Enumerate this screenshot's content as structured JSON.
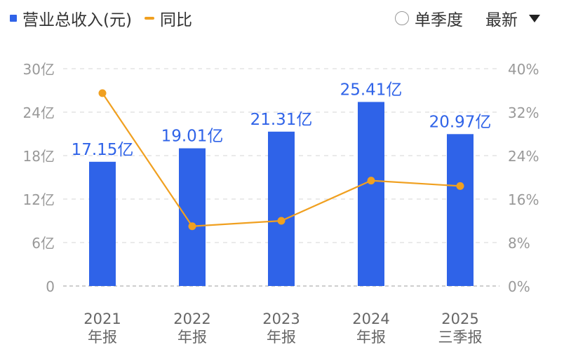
{
  "legend": {
    "revenue_label": "营业总收入(元)",
    "yoy_label": "同比"
  },
  "controls": {
    "period_label": "单季度",
    "sort_label": "最新"
  },
  "colors": {
    "bar": "#2f63e8",
    "line": "#f0a020",
    "value_label": "#2f63e8",
    "axis_text": "#999999",
    "grid": "#e3e3e3"
  },
  "chart_data": {
    "type": "bar",
    "categories": [
      [
        "2021",
        "年报"
      ],
      [
        "2022",
        "年报"
      ],
      [
        "2023",
        "年报"
      ],
      [
        "2024",
        "年报"
      ],
      [
        "2025",
        "三季报"
      ]
    ],
    "series": [
      {
        "name": "营业总收入(元)",
        "type": "bar",
        "axis": "left",
        "values": [
          17.15,
          19.01,
          21.31,
          25.41,
          20.97
        ],
        "labels": [
          "17.15亿",
          "19.01亿",
          "21.31亿",
          "25.41亿",
          "20.97亿"
        ]
      },
      {
        "name": "同比",
        "type": "line",
        "axis": "right",
        "values": [
          35.5,
          11.0,
          12.0,
          19.4,
          18.4
        ]
      }
    ],
    "left_axis": {
      "range": [
        0,
        30
      ],
      "ticks": [
        0,
        6,
        12,
        18,
        24,
        30
      ],
      "tick_labels": [
        "0",
        "6亿",
        "12亿",
        "18亿",
        "24亿",
        "30亿"
      ]
    },
    "right_axis": {
      "range": [
        0,
        40
      ],
      "ticks": [
        0,
        8,
        16,
        24,
        32,
        40
      ],
      "tick_labels": [
        "0%",
        "8%",
        "16%",
        "24%",
        "32%",
        "40%"
      ]
    },
    "grid": true
  }
}
